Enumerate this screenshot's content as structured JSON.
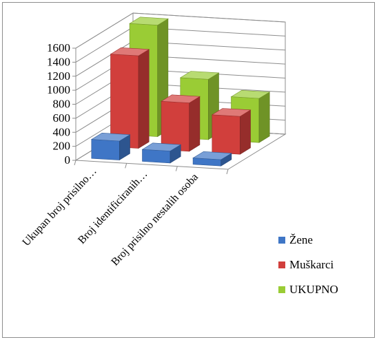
{
  "chart_data": {
    "type": "bar",
    "categories": [
      "Ukupan broj prisilno…",
      "Broj identificiranih…",
      "Broj prisilno nestalih osoba"
    ],
    "series": [
      {
        "name": "Žene",
        "values": [
          270,
          170,
          90
        ],
        "color": "#3f76c6"
      },
      {
        "name": "Muškarci",
        "values": [
          1320,
          690,
          540
        ],
        "color": "#d13f3c"
      },
      {
        "name": "UKUPNO",
        "values": [
          1590,
          860,
          630
        ],
        "color": "#9acc35"
      }
    ],
    "ylim": [
      0,
      1600
    ],
    "yticks": [
      0,
      200,
      400,
      600,
      800,
      1000,
      1200,
      1400,
      1600
    ],
    "grid": true,
    "legend_position": "right",
    "title": "",
    "xlabel": "",
    "ylabel": ""
  }
}
